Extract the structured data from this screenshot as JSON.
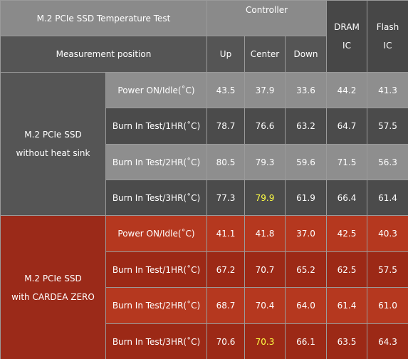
{
  "header": {
    "title": "M.2 PCIe SSD Temperature Test",
    "controller": "Controller",
    "measurement": "Measurement position",
    "positions": [
      "Up",
      "Center",
      "Down"
    ],
    "dram": [
      "DRAM",
      "IC"
    ],
    "flash": [
      "Flash",
      "IC"
    ],
    "colors": {
      "top": "#8a8a8a",
      "second": "#555555",
      "side": "#474747"
    }
  },
  "groups": [
    {
      "label": [
        "M.2 PCIe SSD",
        "without heat sink"
      ],
      "color": "#555555",
      "row_colors": [
        "#8e8e8e",
        "#4b4b4b"
      ],
      "rows": [
        {
          "label": "Power ON/Idle(˚C)",
          "values": [
            "43.5",
            "37.9",
            "33.6",
            "44.2",
            "41.3"
          ]
        },
        {
          "label": "Burn In Test/1HR(˚C)",
          "values": [
            "78.7",
            "76.6",
            "63.2",
            "64.7",
            "57.5"
          ]
        },
        {
          "label": "Burn In Test/2HR(˚C)",
          "values": [
            "80.5",
            "79.3",
            "59.6",
            "71.5",
            "56.3"
          ]
        },
        {
          "label": "Burn In Test/3HR(˚C)",
          "values": [
            "77.3",
            {
              "text": "79.9",
              "color": "#ffff44"
            },
            "61.9",
            "66.4",
            "61.4"
          ]
        }
      ]
    },
    {
      "label": [
        "M.2 PCIe SSD",
        "with CARDEA ZERO"
      ],
      "color": "#9b2a19",
      "row_colors": [
        "#b5381f",
        "#9c2916"
      ],
      "rows": [
        {
          "label": "Power ON/Idle(˚C)",
          "values": [
            "41.1",
            "41.8",
            "37.0",
            "42.5",
            "40.3"
          ]
        },
        {
          "label": "Burn In Test/1HR(˚C)",
          "values": [
            "67.2",
            "70.7",
            "65.2",
            "62.5",
            "57.5"
          ]
        },
        {
          "label": "Burn In Test/2HR(˚C)",
          "values": [
            "68.7",
            "70.4",
            "64.0",
            "61.4",
            "61.0"
          ]
        },
        {
          "label": "Burn In Test/3HR(˚C)",
          "values": [
            "70.6",
            {
              "text": "70.3",
              "color": "#ffff44"
            },
            "66.1",
            "63.5",
            "64.3"
          ]
        }
      ]
    }
  ]
}
